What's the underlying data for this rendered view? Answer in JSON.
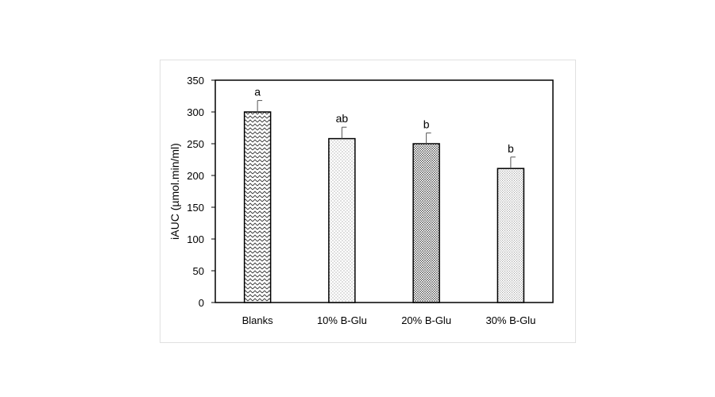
{
  "chart_data": {
    "type": "bar",
    "title": "",
    "xlabel": "",
    "ylabel": "iAUC (µmol.min/ml)",
    "ylim": [
      0,
      350
    ],
    "yticks": [
      0,
      50,
      100,
      150,
      200,
      250,
      300,
      350
    ],
    "grid": false,
    "legend": "none",
    "categories": [
      "Blanks",
      "10% B-Glu",
      "20% B-Glu",
      "30% B-Glu"
    ],
    "values": [
      300,
      258,
      250,
      211
    ],
    "errors": [
      18,
      18,
      17,
      18
    ],
    "significance": [
      "a",
      "ab",
      "b",
      "b"
    ],
    "patterns": [
      "zigzag",
      "sparse-dots",
      "dense-dots",
      "fine-dots"
    ],
    "colors": {
      "bar_fill": "#ffffff",
      "pattern": "#333333",
      "outline": "#000000"
    }
  }
}
